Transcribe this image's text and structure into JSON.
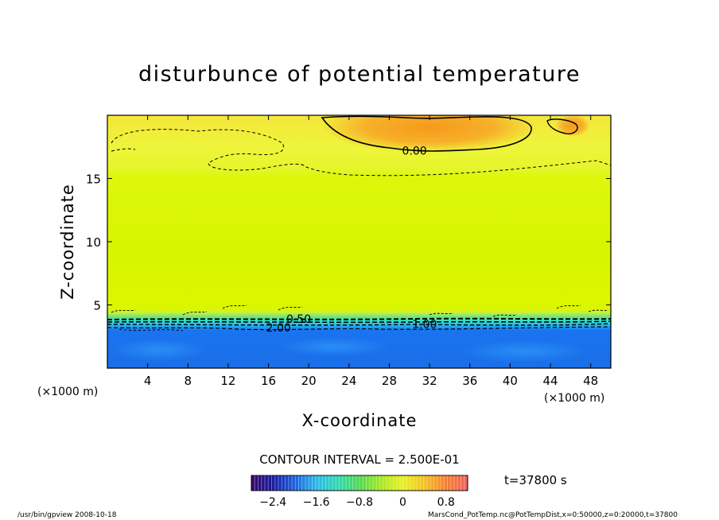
{
  "chart_data": {
    "type": "heatmap",
    "title": "disturbunce of potential temperature",
    "xlabel": "X-coordinate",
    "ylabel": "Z-coordinate",
    "x_unit": "(×1000 m)",
    "z_unit": "(×1000 m)",
    "xlim": [
      0,
      50
    ],
    "ylim": [
      0,
      20
    ],
    "x_ticks": [
      4,
      8,
      12,
      16,
      20,
      24,
      28,
      32,
      36,
      40,
      44,
      48
    ],
    "y_ticks": [
      5,
      10,
      15
    ],
    "contour_interval_text": "CONTOUR INTERVAL = 2.500E-01",
    "time_label": "t=37800 s",
    "colorbar": {
      "ticks": [
        "−2.4",
        "−1.6",
        "−0.8",
        "0",
        "0.8"
      ],
      "tick_values": [
        -2.4,
        -1.6,
        -0.8,
        0,
        0.8
      ],
      "range": [
        -2.8,
        1.2
      ]
    },
    "contour_labels": [
      {
        "text": "0.00",
        "x": 30.5,
        "z": 17.2
      },
      {
        "text": "0.50",
        "x": 19.0,
        "z": 3.9
      },
      {
        "text": "2.00",
        "x": 17.0,
        "z": 3.2
      },
      {
        "text": "1.00",
        "x": 31.5,
        "z": 3.5
      }
    ],
    "fields": {
      "upper_layer": {
        "z_range": [
          15.5,
          20
        ],
        "value_range": [
          0.2,
          0.6
        ]
      },
      "middle_layer": {
        "z_range": [
          4,
          15.5
        ],
        "value": 0.0
      },
      "lower_layer": {
        "z_range": [
          0,
          3.5
        ],
        "value": -2.2
      }
    },
    "footer_left": "/usr/bin/gpview   2008-10-18",
    "footer_right": "MarsCond_PotTemp.nc@PotTempDist,x=0:50000,z=0:20000,t=37800",
    "colors": {
      "low": "#1a73f0",
      "cyan": "#2ee0d8",
      "middle": "#d8f500",
      "upper": "#f0ec3a",
      "warm": "#f8a020"
    }
  }
}
